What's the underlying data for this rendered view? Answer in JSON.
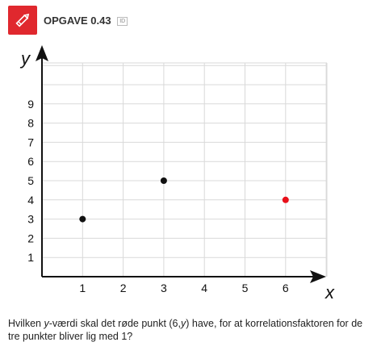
{
  "header": {
    "title": "OPGAVE 0.43",
    "id_tag": "ID",
    "badge_color": "#e0282e",
    "icon": "pencil-icon"
  },
  "chart_data": {
    "type": "scatter",
    "xlabel": "x",
    "ylabel": "y",
    "xlim": [
      0,
      7
    ],
    "ylim": [
      0,
      11
    ],
    "x_ticks": [
      1,
      2,
      3,
      4,
      5,
      6
    ],
    "y_ticks": [
      1,
      2,
      3,
      4,
      5,
      6,
      7,
      8,
      9
    ],
    "grid": true,
    "points": [
      {
        "x": 1,
        "y": 3,
        "color": "#111111"
      },
      {
        "x": 3,
        "y": 5,
        "color": "#111111"
      },
      {
        "x": 6,
        "y": 4,
        "color": "#e8101a"
      }
    ]
  },
  "question": {
    "part1": "Hvilken ",
    "var_y": "y",
    "part2": "-værdi skal det røde punkt (6,",
    "var_y2": "y",
    "part3": ") have, for at korrelationsfaktoren for de tre punkter bliver lig med 1?"
  }
}
